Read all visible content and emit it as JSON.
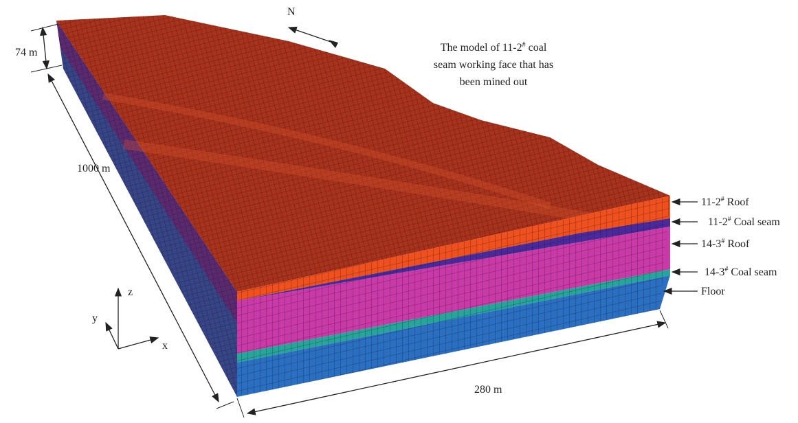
{
  "dimensions": {
    "height": "74 m",
    "length": "1000 m",
    "width": "280 m"
  },
  "compass": "N",
  "axes": {
    "x": "x",
    "y": "y",
    "z": "z"
  },
  "annotation": {
    "line1_pre": "The model of 11-2",
    "line1_sup": "#",
    "line1_post": " coal",
    "line2": "seam working face that has",
    "line3": "been mined out"
  },
  "layers": [
    {
      "pre": "11-2",
      "sup": "#",
      "post": " Roof"
    },
    {
      "pre": "11-2",
      "sup": "#",
      "post": " Coal seam"
    },
    {
      "pre": "14-3",
      "sup": "#",
      "post": " Roof"
    },
    {
      "pre": "14-3",
      "sup": "#",
      "post": " Coal seam"
    }
  ],
  "floor_label": "Floor"
}
